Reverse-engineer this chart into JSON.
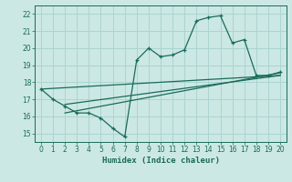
{
  "xlabel": "Humidex (Indice chaleur)",
  "bg_color": "#cce8e4",
  "grid_color": "#aad4d0",
  "line_color": "#1a6b5a",
  "xlim": [
    -0.5,
    20.5
  ],
  "ylim": [
    14.5,
    22.5
  ],
  "xticks": [
    0,
    1,
    2,
    3,
    4,
    5,
    6,
    7,
    8,
    9,
    10,
    11,
    12,
    13,
    14,
    15,
    16,
    17,
    18,
    19,
    20
  ],
  "yticks": [
    15,
    16,
    17,
    18,
    19,
    20,
    21,
    22
  ],
  "curve1_x": [
    0,
    1,
    2,
    3,
    4,
    5,
    6,
    7,
    8,
    9,
    10,
    11,
    12,
    13,
    14,
    15,
    16,
    17,
    18,
    19,
    20
  ],
  "curve1_y": [
    17.6,
    17.0,
    16.6,
    16.2,
    16.2,
    15.9,
    15.3,
    14.8,
    19.3,
    20.0,
    19.5,
    19.6,
    19.9,
    21.6,
    21.8,
    21.9,
    20.3,
    20.5,
    18.4,
    18.4,
    18.6
  ],
  "curve2_x": [
    0,
    20
  ],
  "curve2_y": [
    17.6,
    18.4
  ],
  "curve3_x": [
    2,
    20
  ],
  "curve3_y": [
    16.7,
    18.4
  ],
  "curve4_x": [
    2,
    20
  ],
  "curve4_y": [
    16.2,
    18.55
  ]
}
